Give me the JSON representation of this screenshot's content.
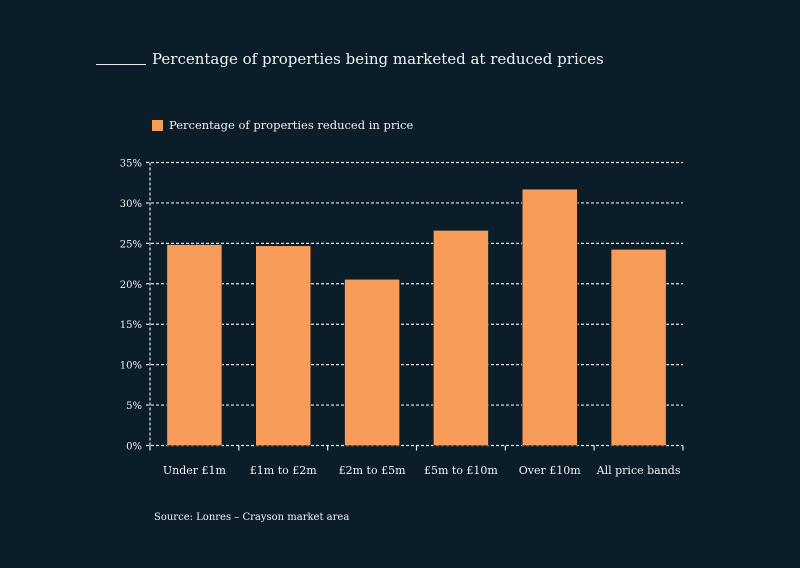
{
  "chart_data": {
    "type": "bar",
    "title": "Percentage of properties being marketed at reduced prices",
    "categories": [
      "Under £1m",
      "£1m to £2m",
      "£2m to £5m",
      "£5m to £10m",
      "Over £10m",
      "All price bands"
    ],
    "series": [
      {
        "name": "Percentage of properties reduced in price",
        "values": [
          24.85,
          24.7,
          20.55,
          26.6,
          31.7,
          24.25
        ]
      }
    ],
    "ylim": [
      0,
      35
    ],
    "yticks": [
      "0%",
      "5%",
      "10%",
      "15%",
      "20%",
      "25%",
      "30%",
      "35%"
    ],
    "grid": true,
    "legend_position": "top-left",
    "source": "Source: Lonres – Crayson market area",
    "colors": {
      "bar": "#f89c5a",
      "background": "#0b1d29",
      "text": "#f2f2f2"
    }
  }
}
